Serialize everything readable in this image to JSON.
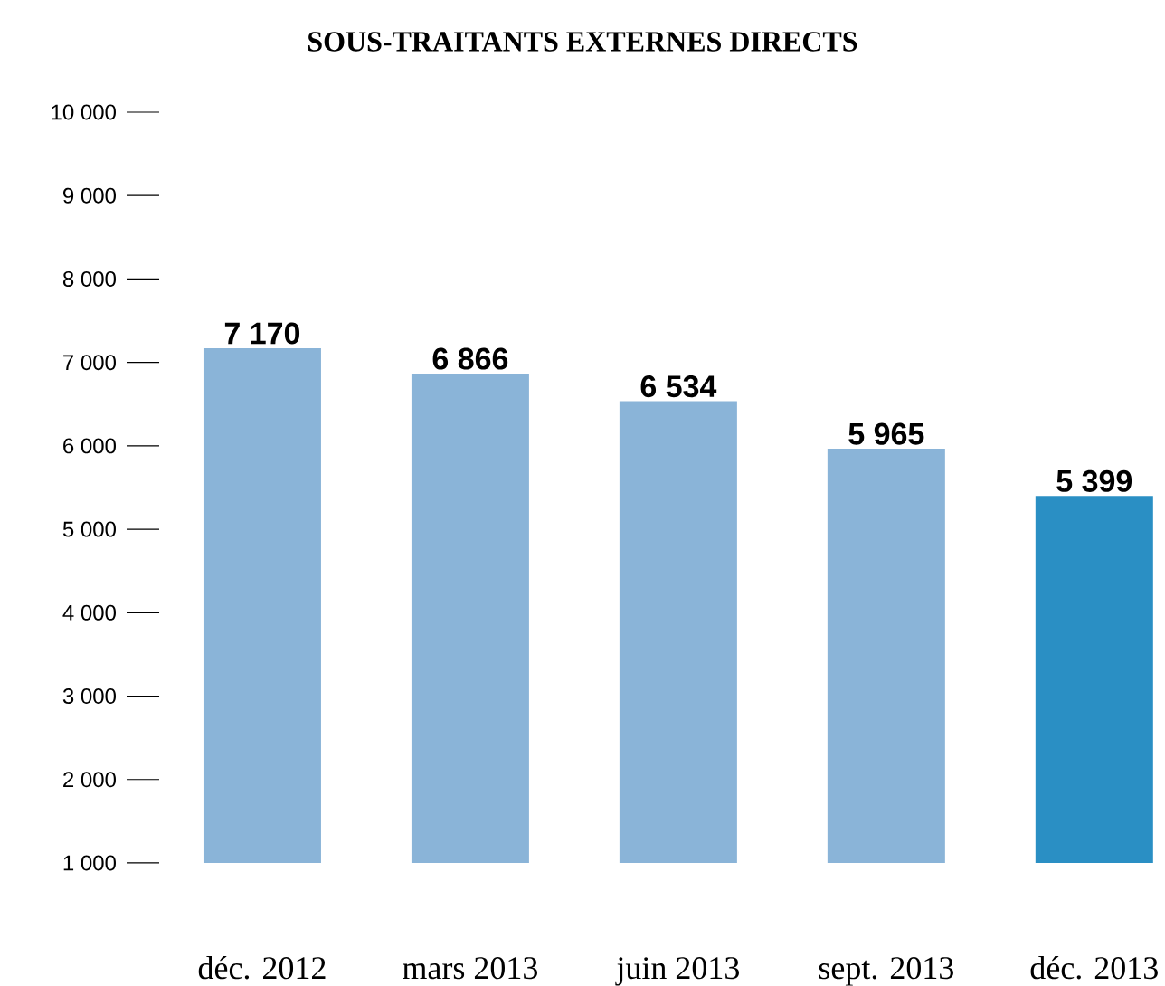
{
  "chart_data": {
    "type": "bar",
    "title": "SOUS-TRAITANTS EXTERNES DIRECTS",
    "categories": [
      "déc. 2012",
      "mars 2013",
      "juin 2013",
      "sept. 2013",
      "déc. 2013"
    ],
    "values": [
      7170,
      6866,
      6534,
      5965,
      5399
    ],
    "value_labels": [
      "7 170",
      "6 866",
      "6 534",
      "5 965",
      "5 399"
    ],
    "colors": [
      "#8ab4d8",
      "#8ab4d8",
      "#8ab4d8",
      "#8ab4d8",
      "#2a8fc4"
    ],
    "ylim": [
      1000,
      10000
    ],
    "yticks": [
      {
        "value": 1000,
        "label": "1 000"
      },
      {
        "value": 2000,
        "label": "2 000"
      },
      {
        "value": 3000,
        "label": "3 000"
      },
      {
        "value": 4000,
        "label": "4 000"
      },
      {
        "value": 5000,
        "label": "5 000"
      },
      {
        "value": 6000,
        "label": "6 000"
      },
      {
        "value": 7000,
        "label": "7 000"
      },
      {
        "value": 8000,
        "label": "8 000"
      },
      {
        "value": 9000,
        "label": "9 000"
      },
      {
        "value": 10000,
        "label": "10 000"
      }
    ],
    "grid": false
  }
}
